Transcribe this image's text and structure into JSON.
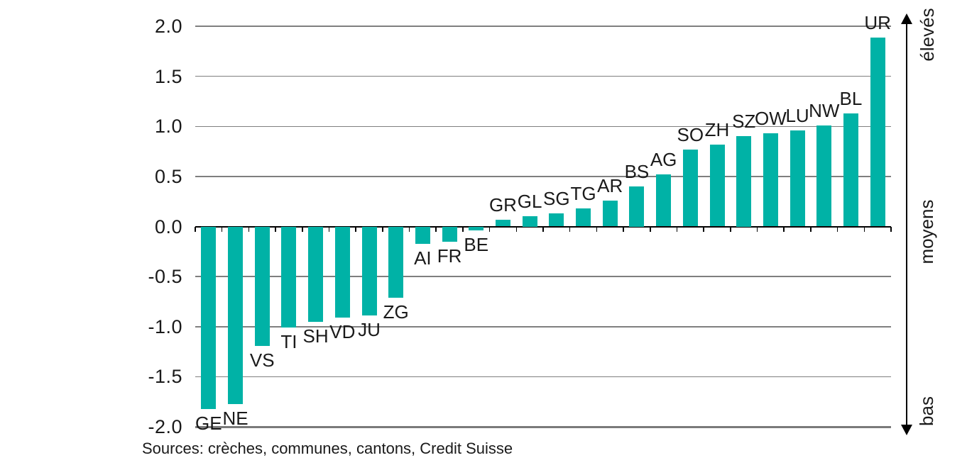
{
  "chart_data": {
    "type": "bar",
    "title": "",
    "xlabel": "",
    "ylabel": "",
    "categories": [
      "GE",
      "NE",
      "VS",
      "TI",
      "SH",
      "VD",
      "JU",
      "ZG",
      "AI",
      "FR",
      "BE",
      "GR",
      "GL",
      "SG",
      "TG",
      "AR",
      "BS",
      "AG",
      "SO",
      "ZH",
      "SZ",
      "OW",
      "LU",
      "NW",
      "BL",
      "UR"
    ],
    "values": [
      -1.82,
      -1.77,
      -1.19,
      -1.01,
      -0.95,
      -0.91,
      -0.89,
      -0.71,
      -0.17,
      -0.15,
      -0.04,
      0.07,
      0.1,
      0.13,
      0.18,
      0.26,
      0.4,
      0.52,
      0.77,
      0.82,
      0.9,
      0.93,
      0.96,
      1.01,
      1.13,
      1.89
    ],
    "ylim": [
      -2.0,
      2.0
    ],
    "yticks": [
      {
        "value": 2.0,
        "label": "2.0"
      },
      {
        "value": 1.5,
        "label": "1.5"
      },
      {
        "value": 1.0,
        "label": "1.0"
      },
      {
        "value": 0.5,
        "label": "0.5"
      },
      {
        "value": 0.0,
        "label": "0.0"
      },
      {
        "value": -0.5,
        "label": "-0.5"
      },
      {
        "value": -1.0,
        "label": "-1.0"
      },
      {
        "value": -1.5,
        "label": "-1.5"
      },
      {
        "value": -2.0,
        "label": "-2.0"
      }
    ],
    "grid": true,
    "legend": null,
    "bar_color": "#00b2a6",
    "right_axis_labels": {
      "top": "élevés",
      "middle": "moyens",
      "bottom": "bas"
    },
    "source": "Sources: crèches, communes, cantons, Credit Suisse"
  }
}
